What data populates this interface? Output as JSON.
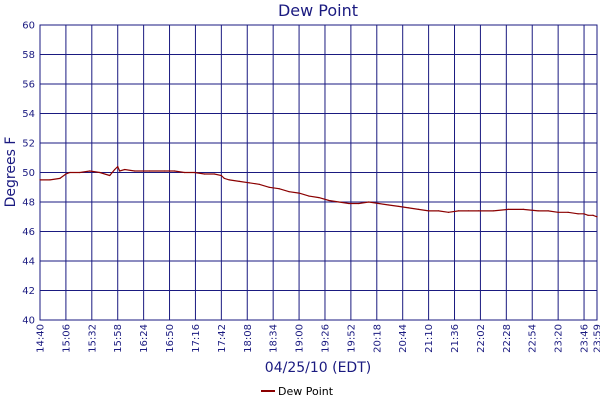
{
  "chart_data": {
    "type": "line",
    "title": "Dew Point",
    "xlabel": "04/25/10 (EDT)",
    "ylabel": "Degrees F",
    "ylim": [
      40,
      60
    ],
    "yticks": [
      "40",
      "42",
      "44",
      "46",
      "48",
      "50",
      "52",
      "54",
      "56",
      "58",
      "60"
    ],
    "xticks": [
      "14:40",
      "15:06",
      "15:32",
      "15:58",
      "16:24",
      "16:50",
      "17:16",
      "17:42",
      "18:08",
      "18:34",
      "19:00",
      "19:26",
      "19:52",
      "20:18",
      "20:44",
      "21:10",
      "21:36",
      "22:02",
      "22:28",
      "22:54",
      "23:20",
      "23:46",
      "23:59"
    ],
    "xlim": [
      "14:40",
      "23:59"
    ],
    "grid": true,
    "legend_position": "bottom",
    "colors": {
      "frame": "#1a1a80",
      "text": "#1a1a80",
      "series": "#8b0000"
    },
    "series": [
      {
        "name": "Dew Point",
        "x": [
          "14:40",
          "14:50",
          "15:00",
          "15:06",
          "15:10",
          "15:20",
          "15:30",
          "15:40",
          "15:50",
          "15:55",
          "15:58",
          "16:00",
          "16:05",
          "16:15",
          "16:30",
          "16:45",
          "16:55",
          "17:05",
          "17:15",
          "17:25",
          "17:35",
          "17:42",
          "17:45",
          "17:50",
          "18:00",
          "18:10",
          "18:20",
          "18:30",
          "18:40",
          "18:50",
          "19:00",
          "19:10",
          "19:20",
          "19:30",
          "19:40",
          "19:50",
          "20:00",
          "20:10",
          "20:20",
          "20:30",
          "20:40",
          "20:50",
          "21:00",
          "21:10",
          "21:20",
          "21:30",
          "21:40",
          "21:50",
          "22:00",
          "22:15",
          "22:30",
          "22:45",
          "23:00",
          "23:10",
          "23:20",
          "23:30",
          "23:40",
          "23:46",
          "23:50",
          "23:55",
          "23:59"
        ],
        "values": [
          49.5,
          49.5,
          49.6,
          49.9,
          50.0,
          50.0,
          50.1,
          50.0,
          49.8,
          50.2,
          50.4,
          50.1,
          50.2,
          50.1,
          50.1,
          50.1,
          50.1,
          50.0,
          50.0,
          49.9,
          49.9,
          49.8,
          49.6,
          49.5,
          49.4,
          49.3,
          49.2,
          49.0,
          48.9,
          48.7,
          48.6,
          48.4,
          48.3,
          48.1,
          48.0,
          47.9,
          47.9,
          48.0,
          47.9,
          47.8,
          47.7,
          47.6,
          47.5,
          47.4,
          47.4,
          47.3,
          47.4,
          47.4,
          47.4,
          47.4,
          47.5,
          47.5,
          47.4,
          47.4,
          47.3,
          47.3,
          47.2,
          47.2,
          47.1,
          47.1,
          47.0
        ]
      }
    ]
  }
}
